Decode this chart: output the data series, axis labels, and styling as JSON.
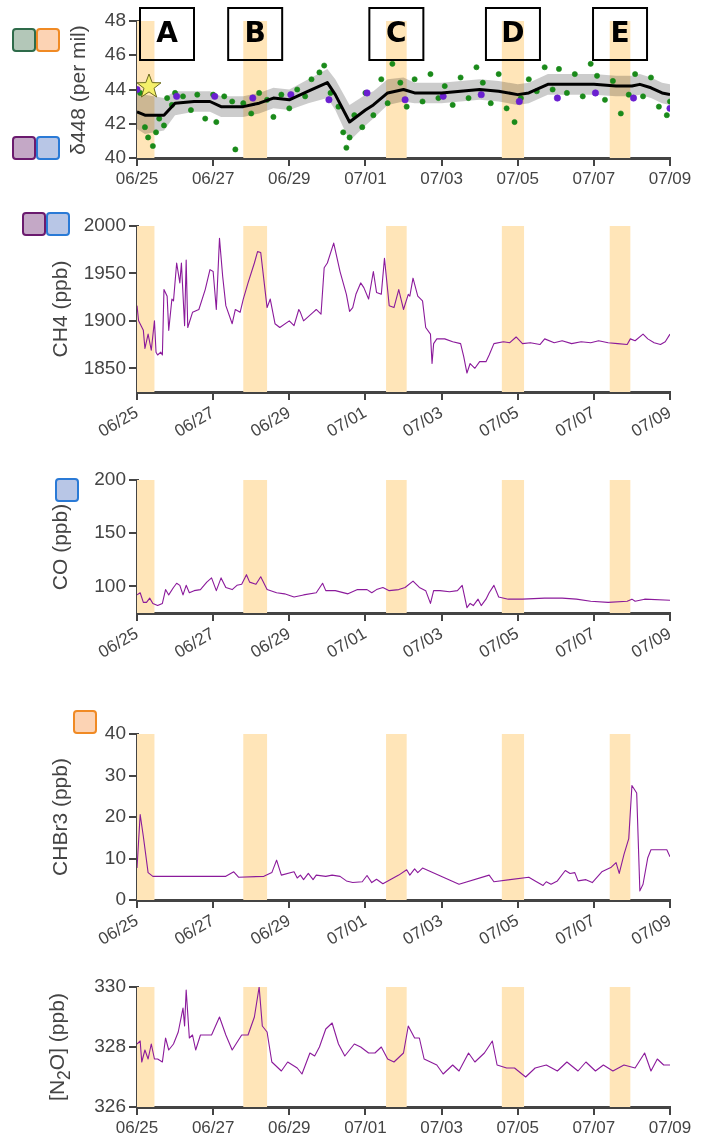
{
  "chart_data": [
    {
      "type": "line",
      "ylabel": "δ448 (per mil)",
      "xlim": [
        "--06-25",
        "--07-09"
      ],
      "ylim": [
        40,
        48
      ],
      "xticks": [
        {
          "value": "--06-25",
          "label": "06/25"
        },
        {
          "value": "--06-27",
          "label": "06/27"
        },
        {
          "value": "--06-29",
          "label": "06/29"
        },
        {
          "value": "--07-01",
          "label": "07/01"
        },
        {
          "value": "--07-03",
          "label": "07/03"
        },
        {
          "value": "--07-05",
          "label": "07/05"
        },
        {
          "value": "--07-07",
          "label": "07/07"
        },
        {
          "value": "--07-09",
          "label": "07/09"
        }
      ],
      "yticks": [
        40,
        42,
        44,
        46,
        48
      ],
      "bands": [
        {
          "axis": "x",
          "from": "--06-25T00:00",
          "to": "--06-25T11:00",
          "label": "A",
          "color": "#ffe5b8"
        },
        {
          "axis": "x",
          "from": "--06-27T19:00",
          "to": "--06-28T10:00",
          "label": "B",
          "color": "#ffe5b8"
        },
        {
          "axis": "x",
          "from": "--07-01T13:00",
          "to": "--07-02T02:00",
          "label": "C",
          "color": "#ffe5b8"
        },
        {
          "axis": "x",
          "from": "--07-04T14:00",
          "to": "--07-05T04:00",
          "label": "D",
          "color": "#ffe5b8"
        },
        {
          "axis": "x",
          "from": "--07-07T10:00",
          "to": "--07-07T23:00",
          "label": "E",
          "color": "#ffe5b8"
        }
      ],
      "series": [
        {
          "type": "scatter",
          "marker": "circle",
          "color": "#1a8a1a",
          "x": [
            "--06-25T02:00",
            "--06-25T05:00",
            "--06-25T07:00",
            "--06-25T10:00",
            "--06-25T12:00",
            "--06-25T14:00",
            "--06-25T17:00",
            "--06-25T19:00",
            "--06-25T22:00",
            "--06-26T00:00",
            "--06-26T05:00",
            "--06-26T10:00",
            "--06-26T14:00",
            "--06-26T19:00",
            "--06-27T00:00",
            "--06-27T02:00",
            "--06-27T07:00",
            "--06-27T12:00",
            "--06-27T14:00",
            "--06-27T19:00",
            "--06-28T00:00",
            "--06-28T05:00",
            "--06-28T10:00",
            "--06-28T14:00",
            "--06-28T19:00",
            "--06-29T00:00",
            "--06-29T05:00",
            "--06-29T10:00",
            "--06-29T14:00",
            "--06-29T19:00",
            "--06-29T22:00",
            "--06-30T02:00",
            "--06-30T07:00",
            "--06-30T10:00",
            "--06-30T12:00",
            "--06-30T14:00",
            "--06-30T17:00",
            "--06-30T22:00",
            "--07-01T00:00",
            "--07-01T05:00",
            "--07-01T10:00",
            "--07-01T14:00",
            "--07-01T17:00",
            "--07-01T22:00",
            "--07-02T02:00",
            "--07-02T07:00",
            "--07-02T12:00",
            "--07-02T17:00",
            "--07-02T22:00",
            "--07-03T02:00",
            "--07-03T07:00",
            "--07-03T12:00",
            "--07-03T17:00",
            "--07-03T22:00",
            "--07-04T02:00",
            "--07-04T07:00",
            "--07-04T12:00",
            "--07-04T17:00",
            "--07-04T22:00",
            "--07-05T02:00",
            "--07-05T07:00",
            "--07-05T12:00",
            "--07-05T17:00",
            "--07-05T22:00",
            "--07-06T02:00",
            "--07-06T07:00",
            "--07-06T12:00",
            "--07-06T17:00",
            "--07-06T22:00",
            "--07-07T02:00",
            "--07-07T07:00",
            "--07-07T12:00",
            "--07-07T17:00",
            "--07-07T22:00",
            "--07-08T02:00",
            "--07-08T07:00",
            "--07-08T12:00",
            "--07-08T17:00",
            "--07-08T22:00",
            "--07-09T00:00"
          ],
          "values": [
            43.8,
            41.8,
            41.2,
            40.7,
            41.5,
            42.3,
            41.9,
            43.5,
            43.1,
            43.8,
            43.6,
            42.8,
            43.7,
            42.3,
            43.7,
            42.1,
            43.6,
            43.3,
            40.5,
            43.2,
            42.6,
            43.8,
            43.4,
            42.4,
            43.7,
            42.9,
            44.0,
            43.6,
            44.6,
            45.0,
            45.4,
            43.8,
            43.0,
            41.5,
            40.6,
            41.2,
            42.5,
            41.8,
            43.8,
            42.5,
            44.6,
            43.2,
            45.5,
            44.4,
            43.0,
            44.6,
            43.3,
            44.9,
            43.5,
            44.2,
            43.1,
            44.7,
            43.5,
            45.3,
            44.4,
            43.2,
            44.9,
            42.9,
            42.1,
            43.5,
            44.6,
            43.9,
            45.3,
            44.0,
            45.2,
            43.8,
            44.9,
            43.6,
            45.5,
            44.8,
            43.4,
            44.5,
            42.6,
            43.7,
            44.9,
            43.6,
            44.7,
            43.0,
            42.5,
            43.3
          ]
        },
        {
          "type": "scatter",
          "marker": "circle",
          "color": "#6a1fd0",
          "x": [
            "--06-25T00:00",
            "--06-26T01:00",
            "--06-27T01:00",
            "--06-28T01:00",
            "--06-29T01:00",
            "--06-30T01:00",
            "--07-01T01:00",
            "--07-02T01:00",
            "--07-03T01:00",
            "--07-04T01:00",
            "--07-05T01:00",
            "--07-06T01:00",
            "--07-07T01:00",
            "--07-08T01:00",
            "--07-09T00:00"
          ],
          "values": [
            44.0,
            43.6,
            43.6,
            43.5,
            43.7,
            43.4,
            43.8,
            43.4,
            43.6,
            43.7,
            43.3,
            43.5,
            43.8,
            43.5,
            42.9
          ]
        },
        {
          "type": "line",
          "marker": "none",
          "color": "#000000",
          "x": [
            "--06-25T00:00",
            "--06-25T05:00",
            "--06-25T17:00",
            "--06-26T00:00",
            "--06-26T12:00",
            "--06-26T22:00",
            "--06-27T05:00",
            "--06-27T19:00",
            "--06-28T05:00",
            "--06-28T14:00",
            "--06-29T00:00",
            "--06-29T12:00",
            "--06-30T00:00",
            "--06-30T05:00",
            "--06-30T14:00",
            "--07-01T00:00",
            "--07-01T05:00",
            "--07-01T14:00",
            "--07-02T00:00",
            "--07-02T07:00",
            "--07-03T00:00",
            "--07-03T12:00",
            "--07-04T00:00",
            "--07-04T12:00",
            "--07-05T00:00",
            "--07-05T07:00",
            "--07-05T19:00",
            "--07-06T05:00",
            "--07-07T00:00",
            "--07-07T14:00",
            "--07-08T00:00",
            "--07-08T05:00",
            "--07-08T12:00",
            "--07-08T19:00",
            "--07-09T00:00"
          ],
          "values": [
            42.7,
            42.5,
            42.5,
            43.2,
            43.3,
            43.3,
            43.0,
            43.0,
            43.2,
            43.5,
            43.4,
            43.9,
            44.4,
            43.7,
            42.1,
            42.8,
            43.1,
            43.8,
            44.0,
            43.8,
            43.8,
            43.9,
            44.0,
            43.9,
            43.7,
            43.8,
            44.3,
            44.3,
            44.3,
            44.2,
            44.2,
            44.3,
            44.1,
            43.8,
            43.7
          ],
          "lower": [
            41.7,
            41.4,
            41.6,
            42.5,
            42.7,
            42.7,
            42.4,
            42.4,
            42.6,
            42.9,
            42.8,
            43.2,
            43.5,
            42.8,
            41.0,
            41.9,
            42.3,
            43.1,
            43.3,
            43.2,
            43.2,
            43.3,
            43.4,
            43.3,
            43.1,
            43.2,
            43.7,
            43.7,
            43.7,
            43.6,
            43.6,
            43.7,
            43.5,
            43.2,
            43.1
          ],
          "upper": [
            43.9,
            43.7,
            43.5,
            43.9,
            43.9,
            43.9,
            43.6,
            43.6,
            43.8,
            44.1,
            44.0,
            44.6,
            45.2,
            44.6,
            43.1,
            43.7,
            43.9,
            44.6,
            44.7,
            44.4,
            44.4,
            44.5,
            44.6,
            44.5,
            44.3,
            44.4,
            44.9,
            44.9,
            44.9,
            44.8,
            44.8,
            44.9,
            44.7,
            44.4,
            44.3
          ]
        }
      ]
    },
    {
      "type": "line",
      "ylabel": "CH4 (ppb)",
      "marker": "none",
      "color": "#8b1a9b",
      "xlim": [
        "--06-25",
        "--07-09"
      ],
      "ylim": [
        1825,
        2000
      ],
      "xticks": [
        {
          "value": "--06-25",
          "label": "06/25"
        },
        {
          "value": "--06-27",
          "label": "06/27"
        },
        {
          "value": "--06-29",
          "label": "06/29"
        },
        {
          "value": "--07-01",
          "label": "07/01"
        },
        {
          "value": "--07-03",
          "label": "07/03"
        },
        {
          "value": "--07-05",
          "label": "07/05"
        },
        {
          "value": "--07-07",
          "label": "07/07"
        },
        {
          "value": "--07-09",
          "label": "07/09"
        }
      ],
      "yticks": [
        1850,
        1900,
        1950,
        2000
      ],
      "bands": [
        {
          "axis": "x",
          "from": "--06-25T00:00",
          "to": "--06-25T11:00",
          "color": "#ffe5b8"
        },
        {
          "axis": "x",
          "from": "--06-27T19:00",
          "to": "--06-28T10:00",
          "color": "#ffe5b8"
        },
        {
          "axis": "x",
          "from": "--07-01T13:00",
          "to": "--07-02T02:00",
          "color": "#ffe5b8"
        },
        {
          "axis": "x",
          "from": "--07-04T14:00",
          "to": "--07-05T04:00",
          "color": "#ffe5b8"
        },
        {
          "axis": "x",
          "from": "--07-07T10:00",
          "to": "--07-07T23:00",
          "color": "#ffe5b8"
        }
      ],
      "x": [
        "--06-25T00:00",
        "--06-25T01:00",
        "--06-25T04:00",
        "--06-25T05:00",
        "--06-25T07:00",
        "--06-25T09:00",
        "--06-25T11:00",
        "--06-25T12:00",
        "--06-25T13:00",
        "--06-25T15:00",
        "--06-25T16:00",
        "--06-25T17:00",
        "--06-25T19:00",
        "--06-25T20:00",
        "--06-25T22:00",
        "--06-25T23:00",
        "--06-26T01:00",
        "--06-26T03:00",
        "--06-26T04:00",
        "--06-26T06:00",
        "--06-26T07:00",
        "--06-26T08:00",
        "--06-26T11:00",
        "--06-26T15:00",
        "--06-26T19:00",
        "--06-26T22:00",
        "--06-27T00:00",
        "--06-27T02:00",
        "--06-27T04:00",
        "--06-27T06:00",
        "--06-27T08:00",
        "--06-27T12:00",
        "--06-27T14:00",
        "--06-27T17:00",
        "--06-27T19:00",
        "--06-27T22:00",
        "--06-28T02:00",
        "--06-28T04:00",
        "--06-28T06:00",
        "--06-28T10:00",
        "--06-28T12:00",
        "--06-28T15:00",
        "--06-28T18:00",
        "--06-29T00:00",
        "--06-29T03:00",
        "--06-29T06:00",
        "--06-29T07:00",
        "--06-29T09:00",
        "--06-29T15:00",
        "--06-29T17:00",
        "--06-29T20:00",
        "--06-29T22:00",
        "--06-30T00:00",
        "--06-30T04:00",
        "--06-30T08:00",
        "--06-30T12:00",
        "--06-30T14:00",
        "--06-30T16:00",
        "--06-30T18:00",
        "--06-30T21:00",
        "--06-30T23:00",
        "--07-01T02:00",
        "--07-01T05:00",
        "--07-01T07:00",
        "--07-01T10:00",
        "--07-01T12:00",
        "--07-01T15:00",
        "--07-01T18:00",
        "--07-01T21:00",
        "--07-02T00:00",
        "--07-02T03:00",
        "--07-02T04:00",
        "--07-02T06:00",
        "--07-02T09:00",
        "--07-02T12:00",
        "--07-02T14:00",
        "--07-02T17:00",
        "--07-02T18:00",
        "--07-02T19:00",
        "--07-02T21:00",
        "--07-03T02:00",
        "--07-03T07:00",
        "--07-03T12:00",
        "--07-03T14:00",
        "--07-03T16:00",
        "--07-03T18:00",
        "--07-03T21:00",
        "--07-04T00:00",
        "--07-04T04:00",
        "--07-04T06:00",
        "--07-04T09:00",
        "--07-04T15:00",
        "--07-04T19:00",
        "--07-04T23:00",
        "--07-05T03:00",
        "--07-05T08:00",
        "--07-05T14:00",
        "--07-05T17:00",
        "--07-05T23:00",
        "--07-06T04:00",
        "--07-06T10:00",
        "--07-06T16:00",
        "--07-06T22:00",
        "--07-07T03:00",
        "--07-07T09:00",
        "--07-07T15:00",
        "--07-07T21:00",
        "--07-07T23:00",
        "--07-08T02:00",
        "--07-08T07:00",
        "--07-08T10:00",
        "--07-08T14:00",
        "--07-08T18:00",
        "--07-08T21:00",
        "--07-09T00:00"
      ],
      "values": [
        1916,
        1900,
        1890,
        1871,
        1886,
        1869,
        1900,
        1867,
        1864,
        1867,
        1864,
        1933,
        1926,
        1890,
        1923,
        1921,
        1961,
        1940,
        1961,
        1895,
        1964,
        1893,
        1909,
        1912,
        1933,
        1954,
        1952,
        1912,
        1987,
        1947,
        1916,
        1897,
        1912,
        1909,
        1923,
        1940,
        1961,
        1973,
        1972,
        1914,
        1923,
        1897,
        1893,
        1900,
        1895,
        1912,
        1909,
        1900,
        1909,
        1912,
        1907,
        1956,
        1961,
        1982,
        1952,
        1928,
        1910,
        1914,
        1928,
        1940,
        1935,
        1923,
        1952,
        1930,
        1928,
        1966,
        1916,
        1914,
        1933,
        1912,
        1928,
        1926,
        1945,
        1926,
        1921,
        1893,
        1886,
        1855,
        1876,
        1881,
        1881,
        1878,
        1876,
        1862,
        1845,
        1855,
        1850,
        1857,
        1857,
        1864,
        1876,
        1878,
        1877,
        1883,
        1876,
        1877,
        1875,
        1881,
        1877,
        1879,
        1876,
        1878,
        1877,
        1879,
        1877,
        1876,
        1875,
        1881,
        1879,
        1886,
        1881,
        1877,
        1875,
        1878,
        1886
      ]
    },
    {
      "type": "line",
      "ylabel": "CO (ppb)",
      "marker": "none",
      "color": "#8b1a9b",
      "xlim": [
        "--06-25",
        "--07-09"
      ],
      "ylim": [
        75,
        200
      ],
      "xticks": [
        {
          "value": "--06-25",
          "label": "06/25"
        },
        {
          "value": "--06-27",
          "label": "06/27"
        },
        {
          "value": "--06-29",
          "label": "06/29"
        },
        {
          "value": "--07-01",
          "label": "07/01"
        },
        {
          "value": "--07-03",
          "label": "07/03"
        },
        {
          "value": "--07-05",
          "label": "07/05"
        },
        {
          "value": "--07-07",
          "label": "07/07"
        },
        {
          "value": "--07-09",
          "label": "07/09"
        }
      ],
      "yticks": [
        100,
        150,
        200
      ],
      "bands": [
        {
          "axis": "x",
          "from": "--06-25T00:00",
          "to": "--06-25T11:00",
          "color": "#ffe5b8"
        },
        {
          "axis": "x",
          "from": "--06-27T19:00",
          "to": "--06-28T10:00",
          "color": "#ffe5b8"
        },
        {
          "axis": "x",
          "from": "--07-01T13:00",
          "to": "--07-02T02:00",
          "color": "#ffe5b8"
        },
        {
          "axis": "x",
          "from": "--07-04T14:00",
          "to": "--07-05T04:00",
          "color": "#ffe5b8"
        },
        {
          "axis": "x",
          "from": "--07-07T10:00",
          "to": "--07-07T23:00",
          "color": "#ffe5b8"
        }
      ],
      "x": [
        "--06-25T00:00",
        "--06-25T02:00",
        "--06-25T04:00",
        "--06-25T06:00",
        "--06-25T08:00",
        "--06-25T10:00",
        "--06-25T13:00",
        "--06-25T16:00",
        "--06-25T18:00",
        "--06-25T20:00",
        "--06-25T23:00",
        "--06-26T01:00",
        "--06-26T03:00",
        "--06-26T05:00",
        "--06-26T07:00",
        "--06-26T09:00",
        "--06-26T12:00",
        "--06-26T16:00",
        "--06-26T20:00",
        "--06-26T23:00",
        "--06-27T02:00",
        "--06-27T05:00",
        "--06-27T08:00",
        "--06-27T12:00",
        "--06-27T15:00",
        "--06-27T18:00",
        "--06-27T21:00",
        "--06-27T23:00",
        "--06-28T03:00",
        "--06-28T06:00",
        "--06-28T10:00",
        "--06-28T16:00",
        "--06-28T21:00",
        "--06-29T03:00",
        "--06-29T09:00",
        "--06-29T17:00",
        "--06-29T21:00",
        "--06-29T23:00",
        "--06-30T05:00",
        "--06-30T13:00",
        "--06-30T19:00",
        "--07-01T01:00",
        "--07-01T04:00",
        "--07-01T07:00",
        "--07-01T11:00",
        "--07-01T15:00",
        "--07-01T21:00",
        "--07-02T01:00",
        "--07-02T06:00",
        "--07-02T10:00",
        "--07-02T14:00",
        "--07-02T17:00",
        "--07-02T19:00",
        "--07-02T23:00",
        "--07-03T05:00",
        "--07-03T10:00",
        "--07-03T13:00",
        "--07-03T16:00",
        "--07-03T18:00",
        "--07-03T20:00",
        "--07-03T23:00",
        "--07-04T01:00",
        "--07-04T04:00",
        "--07-04T06:00",
        "--07-04T09:00",
        "--07-04T12:00",
        "--07-04T18:00",
        "--07-05T03:00",
        "--07-05T17:00",
        "--07-06T04:00",
        "--07-06T13:00",
        "--07-06T22:00",
        "--07-07T09:00",
        "--07-07T21:00",
        "--07-08T00:00",
        "--07-08T02:00",
        "--07-08T08:00",
        "--07-09T00:00"
      ],
      "values": [
        92,
        94,
        85,
        85,
        89,
        84,
        82,
        84,
        97,
        92,
        99,
        103,
        101,
        92,
        101,
        94,
        96,
        97,
        104,
        108,
        96,
        108,
        99,
        97,
        101,
        102,
        111,
        104,
        102,
        109,
        97,
        94,
        93,
        90,
        92,
        94,
        103,
        96,
        96,
        93,
        97,
        97,
        94,
        97,
        99,
        96,
        97,
        99,
        105,
        99,
        96,
        84,
        96,
        96,
        95,
        96,
        101,
        80,
        84,
        82,
        88,
        82,
        88,
        94,
        101,
        90,
        88,
        88,
        89,
        89,
        88,
        86,
        85,
        86,
        88,
        86,
        88,
        87
      ]
    },
    {
      "type": "line",
      "ylabel": "CHBr3 (ppb)",
      "marker": "none",
      "color": "#8b1a9b",
      "xlim": [
        "--06-25",
        "--07-09"
      ],
      "ylim": [
        0,
        40
      ],
      "xticks": [
        {
          "value": "--06-25",
          "label": "06/25"
        },
        {
          "value": "--06-27",
          "label": "06/27"
        },
        {
          "value": "--06-29",
          "label": "06/29"
        },
        {
          "value": "--07-01",
          "label": "07/01"
        },
        {
          "value": "--07-03",
          "label": "07/03"
        },
        {
          "value": "--07-05",
          "label": "07/05"
        },
        {
          "value": "--07-07",
          "label": "07/07"
        },
        {
          "value": "--07-09",
          "label": "07/09"
        }
      ],
      "yticks": [
        0,
        10,
        20,
        30,
        40
      ],
      "bands": [
        {
          "axis": "x",
          "from": "--06-25T00:00",
          "to": "--06-25T11:00",
          "color": "#ffe5b8"
        },
        {
          "axis": "x",
          "from": "--06-27T19:00",
          "to": "--06-28T10:00",
          "color": "#ffe5b8"
        },
        {
          "axis": "x",
          "from": "--07-01T13:00",
          "to": "--07-02T02:00",
          "color": "#ffe5b8"
        },
        {
          "axis": "x",
          "from": "--07-04T14:00",
          "to": "--07-05T04:00",
          "color": "#ffe5b8"
        },
        {
          "axis": "x",
          "from": "--07-07T10:00",
          "to": "--07-07T23:00",
          "color": "#ffe5b8"
        }
      ],
      "x": [
        "--06-25T00:00",
        "--06-25T02:00",
        "--06-25T04:00",
        "--06-25T07:00",
        "--06-25T10:00",
        "--06-27T08:00",
        "--06-27T13:00",
        "--06-27T16:00",
        "--06-28T08:00",
        "--06-28T13:00",
        "--06-28T16:00",
        "--06-28T19:00",
        "--06-29T03:00",
        "--06-29T05:00",
        "--06-29T07:00",
        "--06-29T09:00",
        "--06-29T12:00",
        "--06-29T15:00",
        "--06-29T17:00",
        "--06-29T23:00",
        "--06-30T03:00",
        "--06-30T08:00",
        "--06-30T12:00",
        "--06-30T16:00",
        "--06-30T22:00",
        "--07-01T01:00",
        "--07-01T04:00",
        "--07-01T07:00",
        "--07-01T11:00",
        "--07-01T21:00",
        "--07-02T02:00",
        "--07-02T04:00",
        "--07-02T07:00",
        "--07-02T09:00",
        "--07-02T12:00",
        "--07-03T11:00",
        "--07-04T06:00",
        "--07-04T09:00",
        "--07-05T07:00",
        "--07-05T11:00",
        "--07-05T16:00",
        "--07-05T18:00",
        "--07-05T21:00",
        "--07-06T01:00",
        "--07-06T06:00",
        "--07-06T09:00",
        "--07-06T12:00",
        "--07-06T14:00",
        "--07-06T19:00",
        "--07-06T23:00",
        "--07-07T05:00",
        "--07-07T11:00",
        "--07-07T14:00",
        "--07-07T16:00",
        "--07-07T19:00",
        "--07-07T22:00",
        "--07-08T00:00",
        "--07-08T03:00",
        "--07-08T05:00",
        "--07-08T07:00",
        "--07-08T10:00",
        "--07-08T12:00",
        "--07-08T22:00",
        "--07-09T00:00"
      ],
      "values": [
        7.7,
        20.6,
        15.3,
        6.6,
        5.7,
        5.7,
        6.8,
        5.5,
        5.7,
        6.6,
        9.6,
        6.0,
        6.8,
        5.3,
        6.0,
        4.9,
        6.4,
        4.9,
        6.0,
        5.7,
        6.0,
        5.7,
        4.6,
        4.2,
        4.4,
        5.9,
        4.2,
        5.0,
        3.9,
        6.0,
        7.3,
        6.0,
        7.5,
        6.6,
        7.7,
        3.8,
        6.0,
        4.4,
        5.5,
        4.6,
        3.5,
        4.4,
        3.8,
        4.6,
        7.1,
        6.4,
        6.6,
        4.6,
        4.9,
        4.2,
        6.8,
        7.9,
        9.0,
        6.4,
        11.0,
        14.8,
        27.6,
        25.8,
        2.2,
        3.8,
        10.2,
        12.1,
        12.1,
        10.4
      ]
    },
    {
      "type": "line",
      "ylabel": "[N$_{2}$O] (ppb)",
      "marker": "none",
      "color": "#8b1a9b",
      "xlim": [
        "--06-25",
        "--07-09"
      ],
      "ylim": [
        326,
        330
      ],
      "xticks": [
        {
          "value": "--06-25",
          "label": "06/25"
        },
        {
          "value": "--06-27",
          "label": "06/27"
        },
        {
          "value": "--06-29",
          "label": "06/29"
        },
        {
          "value": "--07-01",
          "label": "07/01"
        },
        {
          "value": "--07-03",
          "label": "07/03"
        },
        {
          "value": "--07-05",
          "label": "07/05"
        },
        {
          "value": "--07-07",
          "label": "07/07"
        },
        {
          "value": "--07-09",
          "label": "07/09"
        }
      ],
      "yticks": [
        326,
        328,
        330
      ],
      "bands": [
        {
          "axis": "x",
          "from": "--06-25T00:00",
          "to": "--06-25T11:00",
          "color": "#ffe5b8"
        },
        {
          "axis": "x",
          "from": "--06-27T19:00",
          "to": "--06-28T10:00",
          "color": "#ffe5b8"
        },
        {
          "axis": "x",
          "from": "--07-01T13:00",
          "to": "--07-02T02:00",
          "color": "#ffe5b8"
        },
        {
          "axis": "x",
          "from": "--07-04T14:00",
          "to": "--07-05T04:00",
          "color": "#ffe5b8"
        },
        {
          "axis": "x",
          "from": "--07-07T10:00",
          "to": "--07-07T23:00",
          "color": "#ffe5b8"
        }
      ],
      "x": [
        "--06-25T00:00",
        "--06-25T02:00",
        "--06-25T03:00",
        "--06-25T05:00",
        "--06-25T07:00",
        "--06-25T09:00",
        "--06-25T11:00",
        "--06-25T13:00",
        "--06-25T16:00",
        "--06-25T18:00",
        "--06-25T20:00",
        "--06-25T23:00",
        "--06-26T02:00",
        "--06-26T05:00",
        "--06-26T06:00",
        "--06-26T07:00",
        "--06-26T09:00",
        "--06-26T11:00",
        "--06-26T13:00",
        "--06-26T16:00",
        "--06-26T20:00",
        "--06-26T23:00",
        "--06-27T04:00",
        "--06-27T08:00",
        "--06-27T12:00",
        "--06-27T18:00",
        "--06-27T22:00",
        "--06-28T02:00",
        "--06-28T05:00",
        "--06-28T07:00",
        "--06-28T10:00",
        "--06-28T13:00",
        "--06-28T19:00",
        "--06-28T23:00",
        "--06-29T05:00",
        "--06-29T08:00",
        "--06-29T13:00",
        "--06-29T16:00",
        "--06-29T19:00",
        "--06-29T23:00",
        "--06-30T03:00",
        "--06-30T07:00",
        "--06-30T11:00",
        "--06-30T17:00",
        "--06-30T21:00",
        "--07-01T02:00",
        "--07-01T06:00",
        "--07-01T10:00",
        "--07-01T14:00",
        "--07-01T18:00",
        "--07-02T00:00",
        "--07-02T03:00",
        "--07-02T07:00",
        "--07-02T10:00",
        "--07-02T13:00",
        "--07-02T17:00",
        "--07-02T21:00",
        "--07-03T01:00",
        "--07-03T07:00",
        "--07-03T11:00",
        "--07-03T17:00",
        "--07-03T21:00",
        "--07-04T03:00",
        "--07-04T08:00",
        "--07-04T11:00",
        "--07-04T17:00",
        "--07-04T22:00",
        "--07-05T05:00",
        "--07-05T11:00",
        "--07-05T18:00",
        "--07-06T01:00",
        "--07-06T07:00",
        "--07-06T14:00",
        "--07-06T19:00",
        "--07-07T01:00",
        "--07-07T06:00",
        "--07-07T12:00",
        "--07-07T19:00",
        "--07-08T02:00",
        "--07-08T08:00",
        "--07-08T12:00",
        "--07-08T16:00",
        "--07-08T20:00",
        "--07-09T00:00"
      ],
      "values": [
        328.1,
        328.2,
        327.5,
        327.9,
        327.6,
        328.1,
        327.6,
        327.6,
        327.5,
        328.3,
        327.9,
        328.1,
        328.5,
        329.3,
        328.7,
        329.9,
        328.3,
        328.4,
        327.9,
        328.4,
        328.4,
        328.4,
        329.0,
        328.4,
        327.9,
        328.4,
        328.4,
        329.0,
        330.0,
        328.7,
        328.5,
        327.5,
        327.2,
        327.5,
        327.3,
        327.1,
        327.8,
        327.7,
        328.0,
        328.6,
        328.8,
        328.1,
        327.7,
        328.1,
        328.0,
        327.8,
        327.8,
        328.0,
        327.6,
        327.5,
        327.8,
        328.7,
        328.3,
        328.3,
        327.6,
        327.5,
        327.4,
        327.1,
        327.4,
        327.2,
        327.8,
        327.5,
        327.8,
        328.2,
        327.4,
        327.3,
        327.3,
        327.0,
        327.3,
        327.4,
        327.2,
        327.5,
        327.2,
        327.5,
        327.2,
        327.4,
        327.2,
        327.4,
        327.3,
        327.8,
        327.2,
        327.6,
        327.4,
        327.4
      ]
    }
  ]
}
